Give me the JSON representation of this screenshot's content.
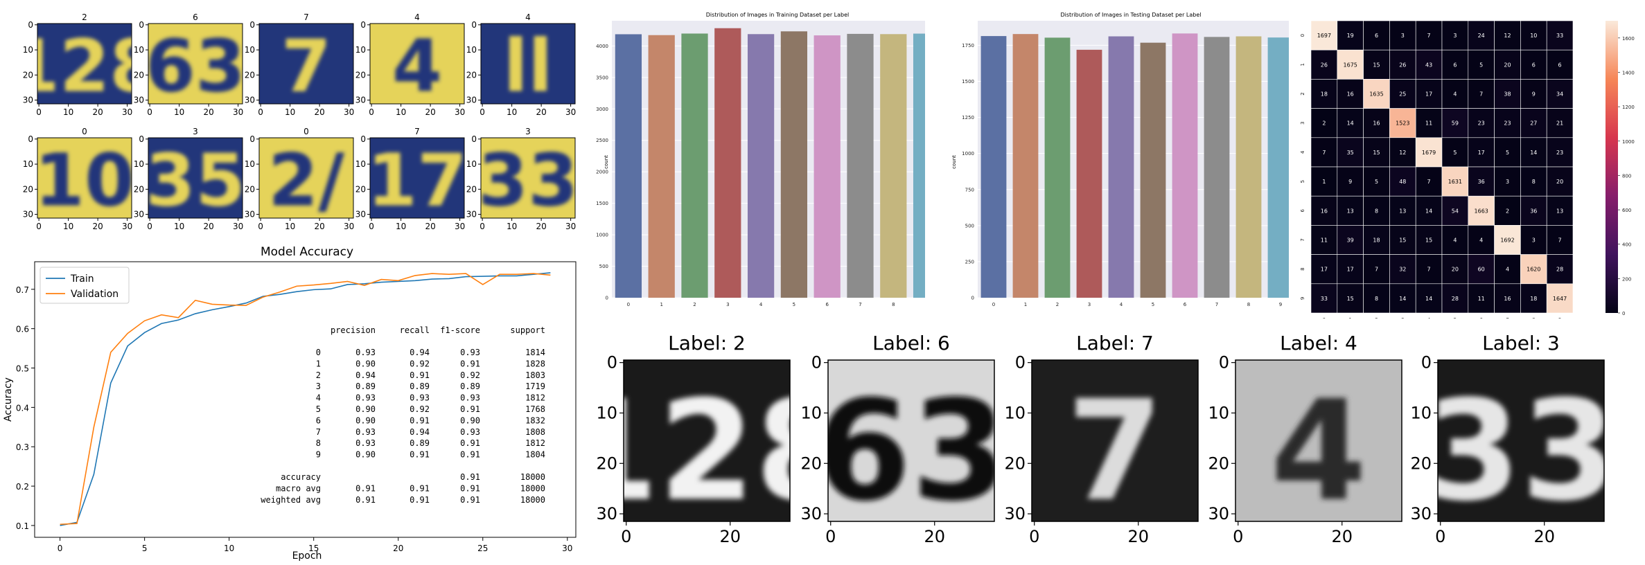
{
  "chart_data": [
    {
      "id": "sample-color",
      "type": "image-grid",
      "rows": 2,
      "cols": 5,
      "titles": [
        "2",
        "6",
        "7",
        "4",
        "4",
        "0",
        "3",
        "0",
        "7",
        "3"
      ],
      "content": [
        "128",
        "63",
        "7",
        "4",
        "ll",
        "10",
        "35",
        "2/",
        "17",
        "33"
      ],
      "xticks": [
        "0",
        "10",
        "20",
        "30"
      ],
      "yticks": [
        "0",
        "10",
        "20",
        "30"
      ],
      "colors": {
        "dark": "#22367a",
        "light": "#e5d35a"
      }
    },
    {
      "id": "train-dist",
      "type": "bar",
      "title": "Distribution of Images in Training Dataset per Label",
      "ylabel": "count",
      "categories": [
        "0",
        "1",
        "2",
        "3",
        "4",
        "5",
        "6",
        "7",
        "8",
        "9"
      ],
      "values": [
        4186,
        4172,
        4197,
        4282,
        4188,
        4232,
        4168,
        4192,
        4188,
        4196
      ],
      "ylim": [
        0,
        4400
      ],
      "yticks": [
        "0",
        "500",
        "1000",
        "1500",
        "2000",
        "2500",
        "3000",
        "3500",
        "4000"
      ],
      "grid": true,
      "colors": [
        "#5b70a3",
        "#c4866a",
        "#6c9d70",
        "#ae5a5a",
        "#8679ad",
        "#8d7765",
        "#cf95c5",
        "#8c8c8c",
        "#c4b67e",
        "#74aec3"
      ]
    },
    {
      "id": "test-dist",
      "type": "bar",
      "title": "Distribution of Images in Testing Dataset per Label",
      "ylabel": "count",
      "categories": [
        "0",
        "1",
        "2",
        "3",
        "4",
        "5",
        "6",
        "7",
        "8",
        "9"
      ],
      "values": [
        1814,
        1828,
        1803,
        1719,
        1812,
        1768,
        1832,
        1808,
        1812,
        1804
      ],
      "ylim": [
        0,
        1920
      ],
      "yticks": [
        "0",
        "250",
        "500",
        "750",
        "1000",
        "1250",
        "1500",
        "1750"
      ],
      "grid": true,
      "colors": [
        "#5b70a3",
        "#c4866a",
        "#6c9d70",
        "#ae5a5a",
        "#8679ad",
        "#8d7765",
        "#cf95c5",
        "#8c8c8c",
        "#c4b67e",
        "#74aec3"
      ]
    },
    {
      "id": "confusion",
      "type": "heatmap",
      "labels": [
        "0",
        "1",
        "2",
        "3",
        "4",
        "5",
        "6",
        "7",
        "8",
        "9"
      ],
      "matrix": [
        [
          1697,
          19,
          6,
          3,
          7,
          3,
          24,
          12,
          10,
          33
        ],
        [
          26,
          1675,
          15,
          26,
          43,
          6,
          5,
          20,
          6,
          6
        ],
        [
          18,
          16,
          1635,
          25,
          17,
          4,
          7,
          38,
          9,
          34
        ],
        [
          2,
          14,
          16,
          1523,
          11,
          59,
          23,
          23,
          27,
          21
        ],
        [
          7,
          35,
          15,
          12,
          1679,
          5,
          17,
          5,
          14,
          23
        ],
        [
          1,
          9,
          5,
          48,
          7,
          1631,
          36,
          3,
          8,
          20
        ],
        [
          16,
          13,
          8,
          13,
          14,
          54,
          1663,
          2,
          36,
          13
        ],
        [
          11,
          39,
          18,
          15,
          15,
          4,
          4,
          1692,
          3,
          7
        ],
        [
          17,
          17,
          7,
          32,
          7,
          20,
          60,
          4,
          1620,
          28
        ],
        [
          33,
          15,
          8,
          14,
          14,
          28,
          11,
          16,
          18,
          1647
        ]
      ],
      "colorbar_ticks": [
        "0",
        "200",
        "400",
        "600",
        "800",
        "1000",
        "1200",
        "1400",
        "1600"
      ],
      "vmax": 1700
    },
    {
      "id": "accuracy",
      "type": "line",
      "title": "Model Accuracy",
      "xlabel": "Epoch",
      "ylabel": "Accuracy",
      "xlim": [
        -1.5,
        30.5
      ],
      "ylim": [
        0.07,
        0.77
      ],
      "xticks": [
        "0",
        "5",
        "10",
        "15",
        "20",
        "25",
        "30"
      ],
      "yticks": [
        "0.1",
        "0.2",
        "0.3",
        "0.4",
        "0.5",
        "0.6",
        "0.7"
      ],
      "legend": "top-left",
      "series": [
        {
          "name": "Train",
          "color": "#1f77b4",
          "values": [
            0.1,
            0.108,
            0.23,
            0.462,
            0.556,
            0.59,
            0.613,
            0.622,
            0.638,
            0.648,
            0.656,
            0.665,
            0.682,
            0.687,
            0.694,
            0.699,
            0.701,
            0.712,
            0.714,
            0.718,
            0.72,
            0.722,
            0.726,
            0.727,
            0.732,
            0.733,
            0.734,
            0.734,
            0.738,
            0.742
          ]
        },
        {
          "name": "Validation",
          "color": "#ff7f0e",
          "values": [
            0.103,
            0.105,
            0.35,
            0.54,
            0.588,
            0.62,
            0.635,
            0.628,
            0.672,
            0.662,
            0.66,
            0.659,
            0.68,
            0.693,
            0.708,
            0.711,
            0.715,
            0.72,
            0.71,
            0.725,
            0.722,
            0.735,
            0.74,
            0.738,
            0.74,
            0.712,
            0.738,
            0.738,
            0.74,
            0.736
          ]
        }
      ]
    },
    {
      "id": "report",
      "type": "table",
      "headers": [
        "precision",
        "recall",
        "f1-score",
        "support"
      ],
      "rows": [
        {
          "label": "0",
          "cells": [
            "0.93",
            "0.94",
            "0.93",
            "1814"
          ]
        },
        {
          "label": "1",
          "cells": [
            "0.90",
            "0.92",
            "0.91",
            "1828"
          ]
        },
        {
          "label": "2",
          "cells": [
            "0.94",
            "0.91",
            "0.92",
            "1803"
          ]
        },
        {
          "label": "3",
          "cells": [
            "0.89",
            "0.89",
            "0.89",
            "1719"
          ]
        },
        {
          "label": "4",
          "cells": [
            "0.93",
            "0.93",
            "0.93",
            "1812"
          ]
        },
        {
          "label": "5",
          "cells": [
            "0.90",
            "0.92",
            "0.91",
            "1768"
          ]
        },
        {
          "label": "6",
          "cells": [
            "0.90",
            "0.91",
            "0.90",
            "1832"
          ]
        },
        {
          "label": "7",
          "cells": [
            "0.93",
            "0.94",
            "0.93",
            "1808"
          ]
        },
        {
          "label": "8",
          "cells": [
            "0.93",
            "0.89",
            "0.91",
            "1812"
          ]
        },
        {
          "label": "9",
          "cells": [
            "0.90",
            "0.91",
            "0.91",
            "1804"
          ]
        }
      ],
      "summary": [
        {
          "label": "accuracy",
          "cells": [
            "",
            "",
            "0.91",
            "18000"
          ]
        },
        {
          "label": "macro avg",
          "cells": [
            "0.91",
            "0.91",
            "0.91",
            "18000"
          ]
        },
        {
          "label": "weighted avg",
          "cells": [
            "0.91",
            "0.91",
            "0.91",
            "18000"
          ]
        }
      ]
    },
    {
      "id": "sample-gray",
      "type": "image-grid",
      "rows": 1,
      "cols": 5,
      "titles": [
        "Label: 2",
        "Label: 6",
        "Label: 7",
        "Label: 4",
        "Label: 3"
      ],
      "content": [
        "128",
        "63",
        "7",
        "4",
        "33"
      ],
      "xticks": [
        "0",
        "20"
      ],
      "yticks": [
        "0",
        "10",
        "20",
        "30"
      ]
    }
  ]
}
